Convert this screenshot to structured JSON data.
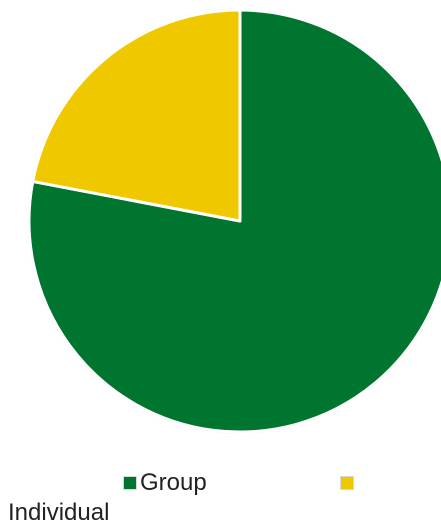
{
  "chart_data": {
    "type": "pie",
    "slices": [
      {
        "label": "Group",
        "value": 78,
        "color": "#00752f"
      },
      {
        "label": "Individual",
        "value": 22,
        "color": "#f0c800"
      }
    ],
    "legend_placement": "bottom"
  }
}
